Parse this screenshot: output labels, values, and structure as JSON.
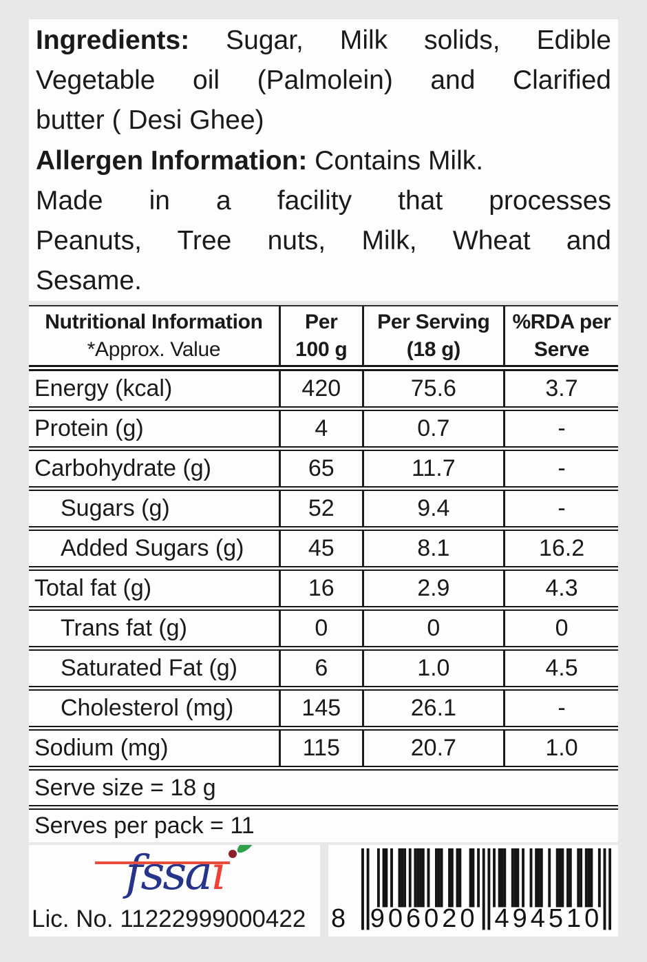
{
  "colors": {
    "page_background": "#e8e8e8",
    "panel_background": "#fdfdfd",
    "text": "#1a1a1a",
    "table_line": "#1c1c1c",
    "fssai_blue": "#27348b",
    "fssai_red": "#ef4135",
    "fssai_leaf_green": "#2ea04a",
    "fssai_berry_maroon": "#8e1f2c"
  },
  "ingredients_block": {
    "lines": [
      {
        "bold": "Ingredients:",
        "rest": " Sugar, Milk solids, Edible",
        "justify": true
      },
      {
        "bold": "",
        "rest": "Vegetable oil (Palmolein) and Clarified",
        "justify": true
      },
      {
        "bold": "",
        "rest": "butter ( Desi Ghee)",
        "justify": false
      },
      {
        "bold": "Allergen Information:",
        "rest": " Contains Milk.",
        "justify": false
      },
      {
        "bold": "",
        "rest": "Made in a facility that processes",
        "justify": true
      },
      {
        "bold": "",
        "rest": "Peanuts, Tree nuts, Milk, Wheat and",
        "justify": true
      },
      {
        "bold": "",
        "rest": "Sesame.",
        "justify": false
      }
    ]
  },
  "nutrition_table": {
    "header": {
      "col1_line1": "Nutritional Information",
      "col1_line2": "*Approx. Value",
      "col2_line1": "Per",
      "col2_line2": "100 g",
      "col3_line1": "Per Serving",
      "col3_line2": "(18 g)",
      "col4_line1": "%RDA per",
      "col4_line2": "Serve"
    },
    "rows": [
      {
        "label": "Energy (kcal)",
        "per_100g": "420",
        "per_serving": "75.6",
        "rda_per_serve": "3.7",
        "indent": false
      },
      {
        "label": "Protein (g)",
        "per_100g": "4",
        "per_serving": "0.7",
        "rda_per_serve": "-",
        "indent": false
      },
      {
        "label": "Carbohydrate (g)",
        "per_100g": "65",
        "per_serving": "11.7",
        "rda_per_serve": "-",
        "indent": false
      },
      {
        "label": "Sugars (g)",
        "per_100g": "52",
        "per_serving": "9.4",
        "rda_per_serve": "-",
        "indent": true
      },
      {
        "label": "Added Sugars (g)",
        "per_100g": "45",
        "per_serving": "8.1",
        "rda_per_serve": "16.2",
        "indent": true
      },
      {
        "label": "Total fat (g)",
        "per_100g": "16",
        "per_serving": "2.9",
        "rda_per_serve": "4.3",
        "indent": false
      },
      {
        "label": "Trans fat (g)",
        "per_100g": "0",
        "per_serving": "0",
        "rda_per_serve": "0",
        "indent": true
      },
      {
        "label": "Saturated Fat (g)",
        "per_100g": "6",
        "per_serving": "1.0",
        "rda_per_serve": "4.5",
        "indent": true
      },
      {
        "label": "Cholesterol (mg)",
        "per_100g": "145",
        "per_serving": "26.1",
        "rda_per_serve": "-",
        "indent": true
      },
      {
        "label": "Sodium (mg)",
        "per_100g": "115",
        "per_serving": "20.7",
        "rda_per_serve": "1.0",
        "indent": false
      }
    ],
    "serve_size_row": "Serve size = 18 g",
    "serves_per_pack_row": "Serves per pack = 11"
  },
  "footer": {
    "fssai": {
      "label": "fssai",
      "text_main": "fssa",
      "text_i": "ı"
    },
    "license_text": "Lic. No. 11222999000422",
    "barcode": {
      "value": "8906020494510",
      "display_first": "8",
      "display_left": "906020",
      "display_right": "494510"
    }
  }
}
